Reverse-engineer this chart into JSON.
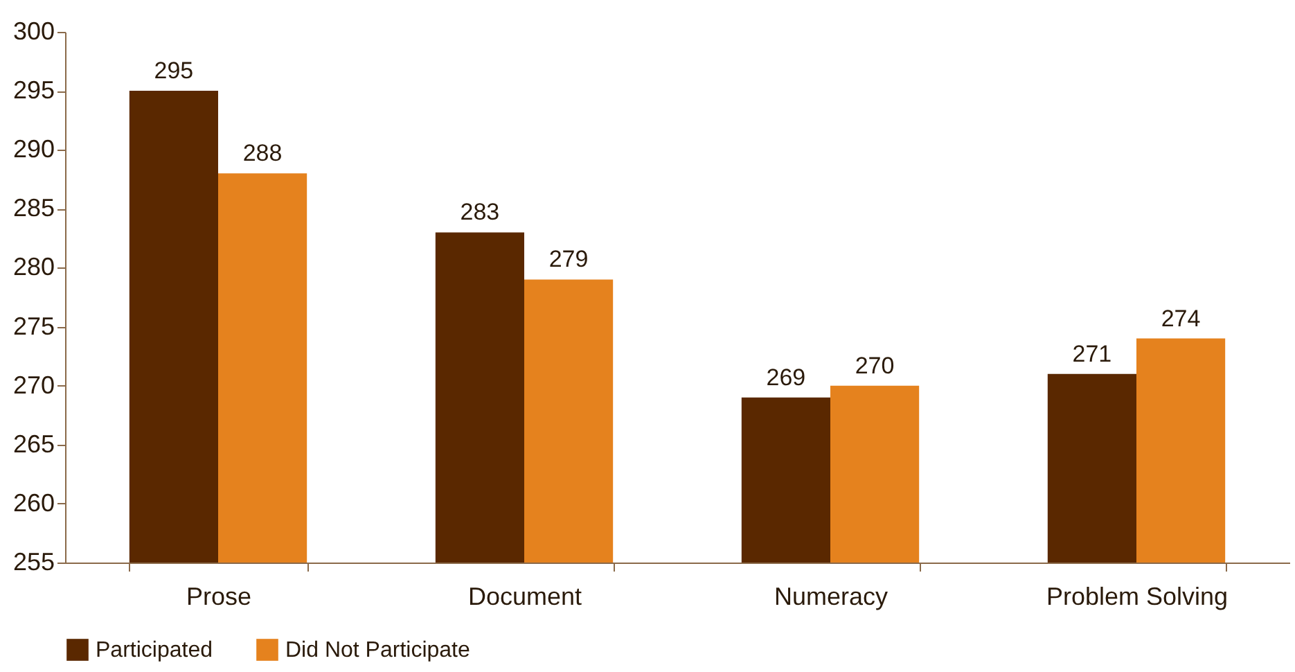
{
  "chart_data": {
    "type": "bar",
    "categories": [
      "Prose",
      "Document",
      "Numeracy",
      "Problem Solving"
    ],
    "series": [
      {
        "name": "Participated",
        "color": "#5a2800",
        "values": [
          295,
          283,
          269,
          271
        ]
      },
      {
        "name": "Did Not Participate",
        "color": "#e5821e",
        "values": [
          288,
          279,
          270,
          274
        ]
      }
    ],
    "ylim": [
      255,
      300
    ],
    "yticks": [
      255,
      260,
      265,
      270,
      275,
      280,
      285,
      290,
      295,
      300
    ],
    "grid": false,
    "legend": "bottom",
    "data_labels": true
  }
}
